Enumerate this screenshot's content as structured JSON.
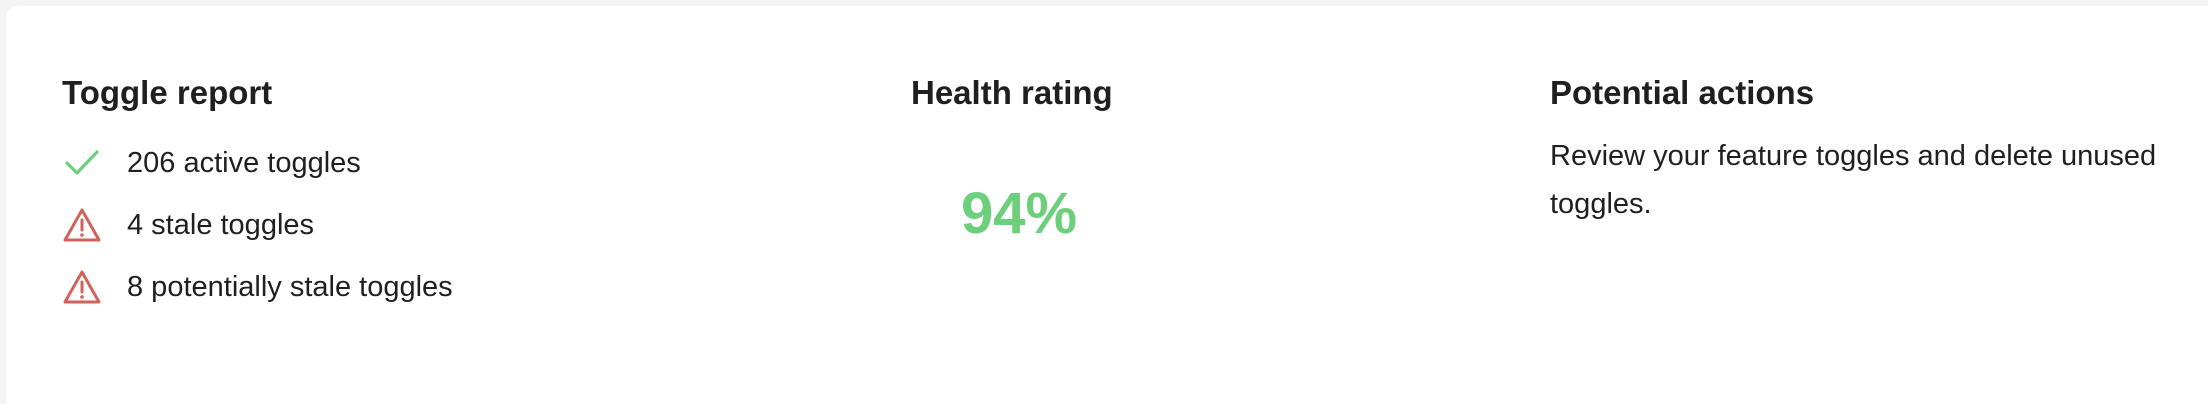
{
  "toggle_report": {
    "title": "Toggle report",
    "items": [
      {
        "icon": "check-icon",
        "text": "206 active toggles",
        "color": "#6ccf7c"
      },
      {
        "icon": "warning-triangle-icon",
        "text": "4 stale toggles",
        "color": "#d0625a"
      },
      {
        "icon": "warning-triangle-icon",
        "text": "8 potentially stale toggles",
        "color": "#d0625a"
      }
    ]
  },
  "health": {
    "title": "Health rating",
    "value": "94%",
    "color": "#6ccf7c"
  },
  "actions": {
    "title": "Potential actions",
    "text": "Review your feature toggles and delete unused toggles."
  }
}
